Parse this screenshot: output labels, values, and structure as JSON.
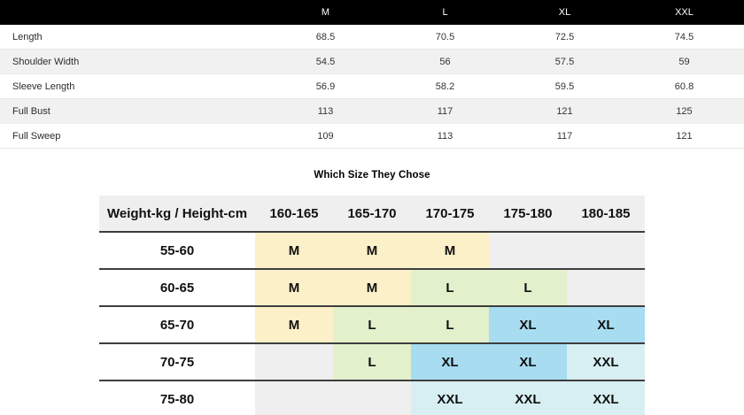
{
  "measurement_table": {
    "header": [
      "M",
      "L",
      "XL",
      "XXL"
    ],
    "rows": [
      {
        "label": "Length",
        "values": [
          "68.5",
          "70.5",
          "72.5",
          "74.5"
        ]
      },
      {
        "label": "Shoulder Width",
        "values": [
          "54.5",
          "56",
          "57.5",
          "59"
        ]
      },
      {
        "label": "Sleeve Length",
        "values": [
          "56.9",
          "58.2",
          "59.5",
          "60.8"
        ]
      },
      {
        "label": "Full Bust",
        "values": [
          "113",
          "117",
          "121",
          "125"
        ]
      },
      {
        "label": "Full Sweep",
        "values": [
          "109",
          "113",
          "117",
          "121"
        ]
      }
    ]
  },
  "size_chart_title": "Which Size They Chose",
  "size_matrix": {
    "corner_label": "Weight-kg / Height-cm",
    "height_columns": [
      "160-165",
      "165-170",
      "170-175",
      "175-180",
      "180-185"
    ],
    "rows": [
      {
        "weight": "55-60",
        "sizes": [
          "M",
          "M",
          "M",
          "",
          ""
        ]
      },
      {
        "weight": "60-65",
        "sizes": [
          "M",
          "M",
          "L",
          "L",
          ""
        ]
      },
      {
        "weight": "65-70",
        "sizes": [
          "M",
          "L",
          "L",
          "XL",
          "XL"
        ]
      },
      {
        "weight": "70-75",
        "sizes": [
          "",
          "L",
          "XL",
          "XL",
          "XXL"
        ]
      },
      {
        "weight": "75-80",
        "sizes": [
          "",
          "",
          "XXL",
          "XXL",
          "XXL"
        ]
      }
    ]
  },
  "colors": {
    "size_m": "#fbf0c8",
    "size_l": "#e2f0cc",
    "size_xl": "#a7dcf1",
    "size_xxl": "#d7eff2",
    "empty_cell": "#efefef",
    "header_bar": "#000000",
    "row_alt": "#f1f1f1",
    "matrix_border": "#3e3e3e"
  }
}
